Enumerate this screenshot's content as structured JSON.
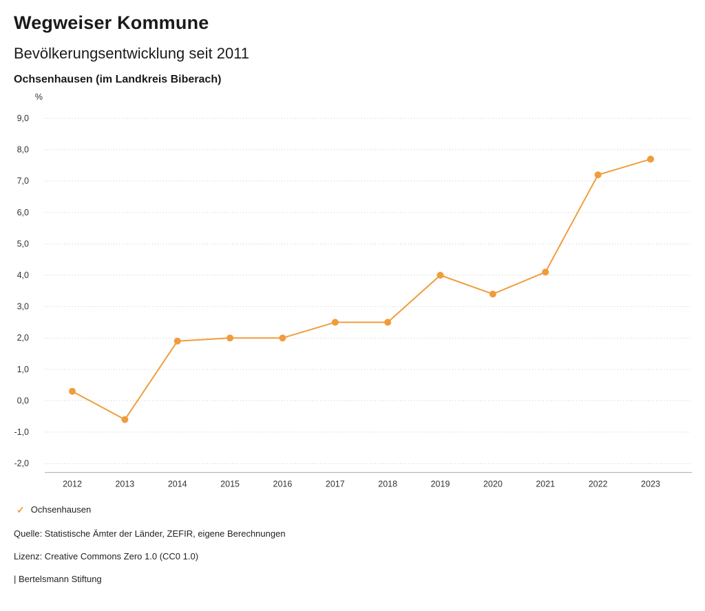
{
  "header": {
    "title": "Wegweiser Kommune",
    "subtitle": "Bevölkerungsentwicklung seit 2011",
    "region": "Ochsenhausen (im Landkreis Biberach)"
  },
  "chart_data": {
    "type": "line",
    "title": "Bevölkerungsentwicklung seit 2011",
    "unit_label": "%",
    "categories": [
      "2012",
      "2013",
      "2014",
      "2015",
      "2016",
      "2017",
      "2018",
      "2019",
      "2020",
      "2021",
      "2022",
      "2023"
    ],
    "series": [
      {
        "name": "Ochsenhausen",
        "values": [
          0.3,
          -0.6,
          1.9,
          2.0,
          2.0,
          2.5,
          2.5,
          4.0,
          3.4,
          4.1,
          7.2,
          7.7
        ],
        "color": "#F09C3C"
      }
    ],
    "ylim": [
      -2,
      9
    ],
    "ytick_step": 1,
    "ytick_labels": [
      "9,0",
      "8,0",
      "7,0",
      "6,0",
      "5,0",
      "4,0",
      "3,0",
      "2,0",
      "1,0",
      "0,0",
      "-1,0",
      "-2,0"
    ],
    "grid": "dotted horizontal",
    "legend_position": "bottom-left"
  },
  "legend": {
    "items": [
      {
        "label": "Ochsenhausen",
        "color": "#F09C3C",
        "icon": "check"
      }
    ]
  },
  "icons": {
    "legend_check": "✓"
  },
  "colors": {
    "accent": "#F09C3C",
    "grid": "#c8c8c8",
    "axis": "#aaaaaa",
    "tick_text": "#333333"
  },
  "footer": {
    "source": "Quelle: Statistische Ämter der Länder, ZEFIR, eigene Berechnungen",
    "license": "Lizenz: Creative Commons Zero 1.0 (CC0 1.0)",
    "attribution": "| Bertelsmann Stiftung"
  }
}
